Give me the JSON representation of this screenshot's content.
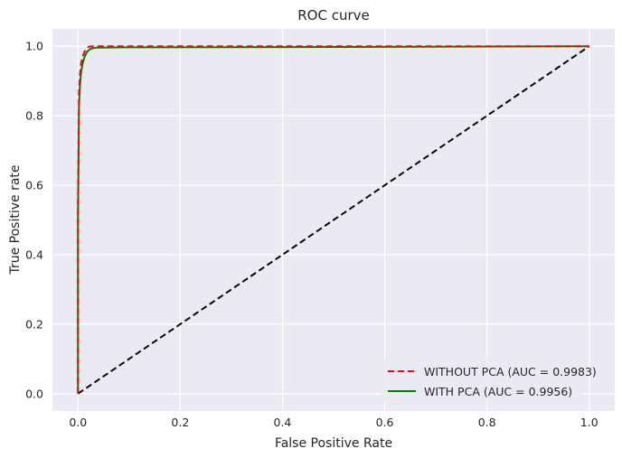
{
  "chart_data": {
    "type": "line",
    "title": "ROC curve",
    "xlabel": "False Positive Rate",
    "ylabel": "True Positive rate",
    "xlim": [
      -0.05,
      1.05
    ],
    "ylim": [
      -0.05,
      1.05
    ],
    "xticks": [
      0.0,
      0.2,
      0.4,
      0.6,
      0.8,
      1.0
    ],
    "yticks": [
      0.0,
      0.2,
      0.4,
      0.6,
      0.8,
      1.0
    ],
    "xtick_labels": [
      "0.0",
      "0.2",
      "0.4",
      "0.6",
      "0.8",
      "1.0"
    ],
    "ytick_labels": [
      "0.0",
      "0.2",
      "0.4",
      "0.6",
      "0.8",
      "1.0"
    ],
    "grid": true,
    "legend_position": "lower-right",
    "series": [
      {
        "name": "WITHOUT PCA (AUC = 0.9983)",
        "color": "#ff0000",
        "style": "dashed",
        "x": [
          0.0,
          0.0,
          0.002,
          0.004,
          0.006,
          0.009,
          0.013,
          0.018,
          0.022,
          0.03,
          0.1,
          0.5,
          1.0
        ],
        "y": [
          0.0,
          0.55,
          0.87,
          0.92,
          0.95,
          0.97,
          0.985,
          0.995,
          0.999,
          1.0,
          1.0,
          1.0,
          1.0
        ]
      },
      {
        "name": "WITH PCA (AUC = 0.9956)",
        "color": "#008000",
        "style": "solid",
        "x": [
          0.0,
          0.0,
          0.002,
          0.004,
          0.006,
          0.009,
          0.013,
          0.018,
          0.025,
          0.035,
          0.1,
          0.5,
          1.0
        ],
        "y": [
          0.0,
          0.5,
          0.83,
          0.89,
          0.925,
          0.95,
          0.97,
          0.985,
          0.993,
          0.996,
          0.997,
          0.998,
          1.0
        ]
      },
      {
        "name": "",
        "color": "#000000",
        "style": "dashed",
        "x": [
          0.0,
          1.0
        ],
        "y": [
          0.0,
          1.0
        ]
      }
    ]
  }
}
